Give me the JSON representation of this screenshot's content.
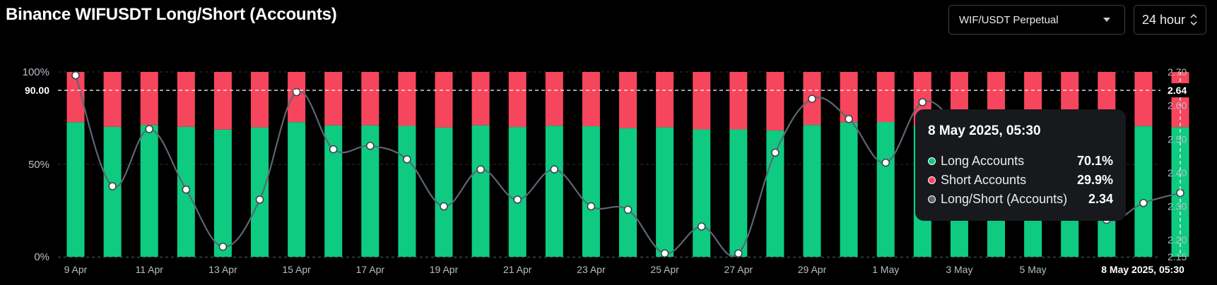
{
  "title": "Binance WIFUSDT Long/Short (Accounts)",
  "controls": {
    "market": "WIF/USDT Perpetual",
    "period": "24 hour"
  },
  "colors": {
    "long": "#0ecb81",
    "short": "#f6465d",
    "ratio_line": "#5e6673",
    "background": "#000000",
    "tooltip_bg": "#17191d"
  },
  "chart_data": {
    "type": "bar",
    "title": "Binance WIFUSDT Long/Short (Accounts)",
    "series": [
      {
        "name": "Long Accounts",
        "values": [
          72.8,
          70.3,
          71.3,
          70.3,
          68.8,
          70.0,
          72.8,
          71.1,
          71.1,
          70.8,
          69.9,
          71.1,
          70.2,
          70.9,
          70.6,
          69.5,
          70.0,
          68.9,
          68.9,
          68.3,
          71.3,
          72.6,
          72.9,
          71.0,
          70.7,
          70.5,
          70.5,
          70.0,
          70.1,
          70.7,
          70.1
        ],
        "color": "#0ecb81"
      },
      {
        "name": "Short Accounts",
        "values": [
          27.2,
          29.7,
          28.7,
          29.7,
          31.2,
          30.0,
          27.2,
          28.9,
          28.9,
          29.2,
          30.1,
          28.9,
          29.8,
          29.1,
          29.4,
          30.5,
          30.0,
          31.1,
          31.1,
          31.7,
          28.7,
          27.4,
          27.1,
          29.0,
          29.3,
          29.5,
          29.5,
          30.0,
          29.9,
          29.3,
          29.9
        ],
        "color": "#f6465d"
      },
      {
        "name": "Long/Short (Accounts)",
        "axis": "right",
        "values": [
          2.69,
          2.36,
          2.53,
          2.35,
          2.18,
          2.32,
          2.64,
          2.47,
          2.48,
          2.44,
          2.3,
          2.41,
          2.32,
          2.41,
          2.3,
          2.29,
          2.16,
          2.24,
          2.16,
          2.46,
          2.62,
          2.56,
          2.43,
          2.61,
          2.53,
          2.39,
          2.34,
          2.39,
          2.26,
          2.31,
          2.34
        ],
        "color": "#5e6673"
      }
    ],
    "x_tick_labels": [
      "9 Apr",
      "11 Apr",
      "13 Apr",
      "15 Apr",
      "17 Apr",
      "19 Apr",
      "21 Apr",
      "23 Apr",
      "25 Apr",
      "27 Apr",
      "29 Apr",
      "1 May",
      "3 May",
      "5 May"
    ],
    "y_left_ticks": [
      "0%",
      "50%",
      "100%"
    ],
    "y_right_ticks": [
      "2.15",
      "2.20",
      "2.30",
      "2.40",
      "2.50",
      "2.60",
      "2.70"
    ],
    "ylim_left": [
      0,
      100
    ],
    "ylim_right": [
      2.15,
      2.7
    ],
    "crosshair": {
      "x_label": "8 May 2025, 05:30",
      "y_left_label": "90.00",
      "y_right_label": "2.64"
    },
    "grid": true
  },
  "tooltip": {
    "title": "8 May 2025, 05:30",
    "rows": [
      {
        "label": "Long Accounts",
        "value": "70.1%",
        "color": "#0ecb81"
      },
      {
        "label": "Short Accounts",
        "value": "29.9%",
        "color": "#f6465d"
      },
      {
        "label": "Long/Short (Accounts)",
        "value": "2.34",
        "color": "#5e6673"
      }
    ]
  }
}
